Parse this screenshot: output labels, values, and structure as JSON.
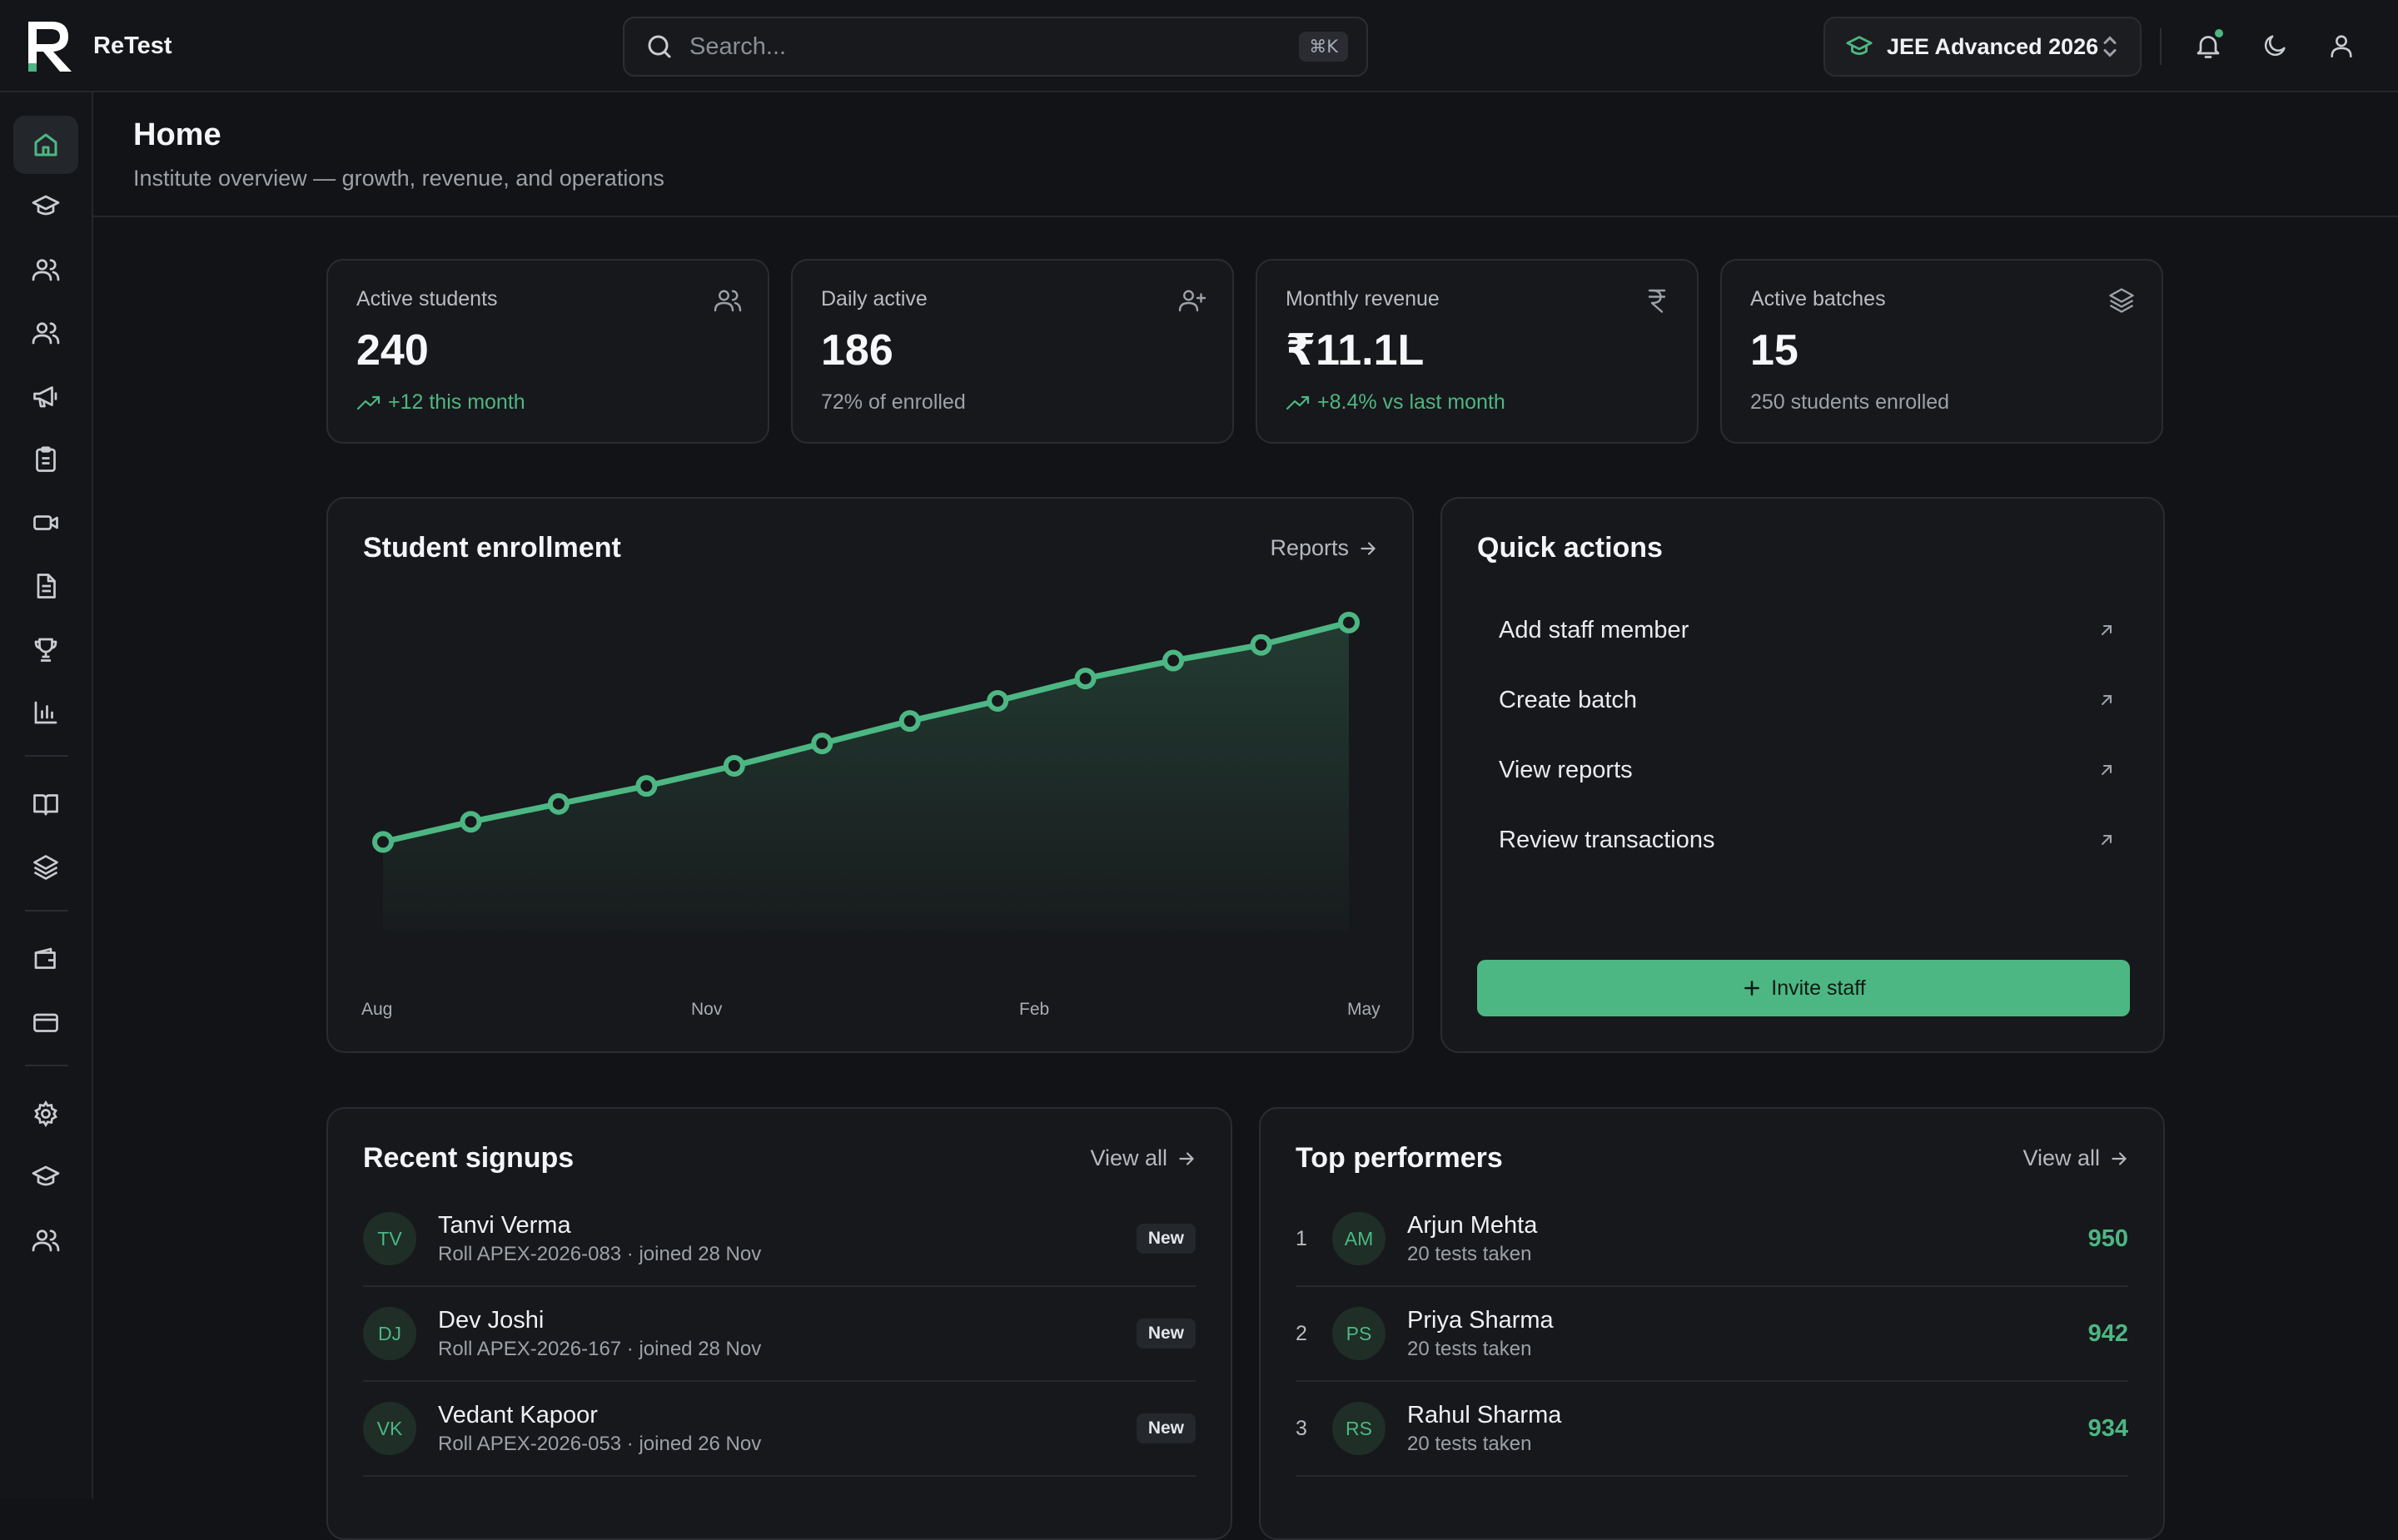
{
  "app": {
    "name": "ReTest"
  },
  "search": {
    "placeholder": "Search...",
    "shortcut": "⌘K"
  },
  "exam_selector": {
    "label": "JEE Advanced 2026"
  },
  "topbar_icons": [
    "bell-icon",
    "moon-icon",
    "user-icon"
  ],
  "sidebar": {
    "items": [
      {
        "icon": "home-icon",
        "active": true
      },
      {
        "icon": "graduation-cap-icon"
      },
      {
        "icon": "users-icon"
      },
      {
        "icon": "users-group-icon"
      },
      {
        "icon": "megaphone-icon"
      },
      {
        "icon": "clipboard-icon"
      },
      {
        "icon": "video-icon"
      },
      {
        "icon": "file-text-icon"
      },
      {
        "icon": "trophy-icon"
      },
      {
        "icon": "bar-chart-icon"
      },
      {
        "icon": "book-open-icon"
      },
      {
        "icon": "layers-icon"
      },
      {
        "icon": "wallet-icon"
      },
      {
        "icon": "credit-card-icon"
      },
      {
        "icon": "settings-icon"
      },
      {
        "icon": "graduation-cap-icon"
      },
      {
        "icon": "users-icon"
      }
    ]
  },
  "page": {
    "title": "Home",
    "subtitle": "Institute overview — growth, revenue, and operations"
  },
  "stats": [
    {
      "label": "Active students",
      "value": "240",
      "foot": "+12 this month",
      "trend": "up",
      "icon": "users-icon"
    },
    {
      "label": "Daily active",
      "value": "186",
      "foot": "72% of enrolled",
      "trend": "none",
      "icon": "user-plus-icon"
    },
    {
      "label": "Monthly revenue",
      "value": "₹11.1L",
      "foot": "+8.4% vs last month",
      "trend": "up",
      "icon": "rupee-icon"
    },
    {
      "label": "Active batches",
      "value": "15",
      "foot": "250 students enrolled",
      "trend": "none",
      "icon": "layers-icon"
    }
  ],
  "enrollment": {
    "title": "Student enrollment",
    "link": "Reports",
    "x_ticks": [
      "Aug",
      "Nov",
      "Feb",
      "May"
    ]
  },
  "chart_data": {
    "type": "area",
    "title": "Student enrollment",
    "x_ticks": [
      "Aug",
      "Nov",
      "Feb",
      "May"
    ],
    "points": 12,
    "values": [
      120,
      129,
      137,
      145,
      154,
      164,
      174,
      183,
      193,
      201,
      208,
      218
    ],
    "color": "#4cb783",
    "grid": false
  },
  "quick_actions": {
    "title": "Quick actions",
    "items": [
      {
        "label": "Add staff member"
      },
      {
        "label": "Create batch"
      },
      {
        "label": "View reports"
      },
      {
        "label": "Review transactions"
      }
    ],
    "invite_label": "Invite staff"
  },
  "recent_signups": {
    "title": "Recent signups",
    "link": "View all",
    "rows": [
      {
        "initials": "TV",
        "name": "Tanvi Verma",
        "meta": "Roll APEX-2026-083 · joined 28 Nov",
        "badge": "New"
      },
      {
        "initials": "DJ",
        "name": "Dev Joshi",
        "meta": "Roll APEX-2026-167 · joined 28 Nov",
        "badge": "New"
      },
      {
        "initials": "VK",
        "name": "Vedant Kapoor",
        "meta": "Roll APEX-2026-053 · joined 26 Nov",
        "badge": "New"
      }
    ]
  },
  "top_performers": {
    "title": "Top performers",
    "link": "View all",
    "rows": [
      {
        "rank": "1",
        "initials": "AM",
        "name": "Arjun Mehta",
        "meta": "20 tests taken",
        "score": "950"
      },
      {
        "rank": "2",
        "initials": "PS",
        "name": "Priya Sharma",
        "meta": "20 tests taken",
        "score": "942"
      },
      {
        "rank": "3",
        "initials": "RS",
        "name": "Rahul Sharma",
        "meta": "20 tests taken",
        "score": "934"
      }
    ]
  },
  "colors": {
    "accent": "#4cb783",
    "background": "#121316",
    "card": "#17181b"
  }
}
